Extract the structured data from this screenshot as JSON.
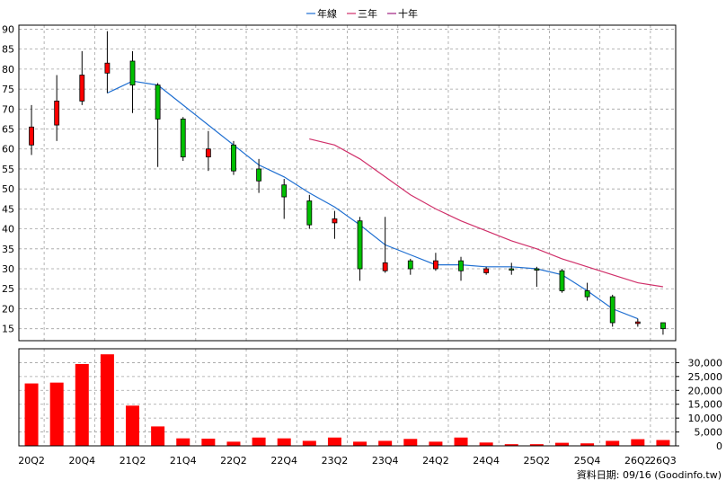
{
  "legend": [
    {
      "label": "年線",
      "color": "#1f6fd1"
    },
    {
      "label": "三年",
      "color": "#d0306a"
    },
    {
      "label": "十年",
      "color": "#a02080"
    }
  ],
  "footer": {
    "text": "資料日期: 09/16  (Goodinfo.tw)"
  },
  "chart_data": [
    {
      "type": "candlestick",
      "quarters": [
        "20Q2",
        "20Q3",
        "20Q4",
        "21Q1",
        "21Q2",
        "21Q3",
        "21Q4",
        "22Q1",
        "22Q2",
        "22Q3",
        "22Q4",
        "23Q1",
        "23Q2",
        "23Q3",
        "23Q4",
        "24Q1",
        "24Q2",
        "24Q3",
        "24Q4",
        "25Q1",
        "25Q2",
        "25Q3",
        "25Q4",
        "26Q1",
        "26Q2",
        "26Q3"
      ],
      "x_tick_labels": [
        "20Q2",
        "20Q4",
        "21Q2",
        "21Q4",
        "22Q2",
        "22Q4",
        "23Q2",
        "23Q4",
        "24Q2",
        "24Q4",
        "25Q2",
        "25Q4",
        "26Q2",
        "26Q3"
      ],
      "y_ticks": [
        15,
        20,
        25,
        30,
        35,
        40,
        45,
        50,
        55,
        60,
        65,
        70,
        75,
        80,
        85,
        90
      ],
      "ylim": [
        12,
        91
      ],
      "grid": true,
      "legend_position": "top",
      "up_color": "#ff0000",
      "down_color": "#00c000",
      "candles": [
        {
          "open": 61,
          "close": 65.5,
          "high": 71,
          "low": 58.5
        },
        {
          "open": 66,
          "close": 72,
          "high": 78.5,
          "low": 62
        },
        {
          "open": 72,
          "close": 78.5,
          "high": 84.5,
          "low": 71
        },
        {
          "open": 79,
          "close": 81.5,
          "high": 89.5,
          "low": 74
        },
        {
          "open": 82,
          "close": 76,
          "high": 84.5,
          "low": 69
        },
        {
          "open": 76,
          "close": 67.5,
          "high": 76.5,
          "low": 55.5
        },
        {
          "open": 67.5,
          "close": 58,
          "high": 68,
          "low": 57
        },
        {
          "open": 58,
          "close": 60,
          "high": 64.5,
          "low": 54.5
        },
        {
          "open": 61,
          "close": 54.5,
          "high": 62,
          "low": 53.5
        },
        {
          "open": 55,
          "close": 52,
          "high": 57.5,
          "low": 49
        },
        {
          "open": 51,
          "close": 48,
          "high": 52.5,
          "low": 42.5
        },
        {
          "open": 47,
          "close": 41,
          "high": 48.5,
          "low": 40
        },
        {
          "open": 41.5,
          "close": 42.5,
          "high": 44.5,
          "low": 37.5
        },
        {
          "open": 42,
          "close": 30,
          "high": 43,
          "low": 27
        },
        {
          "open": 29.5,
          "close": 31.5,
          "high": 43,
          "low": 29
        },
        {
          "open": 32,
          "close": 30,
          "high": 32.5,
          "low": 28.5
        },
        {
          "open": 30,
          "close": 32,
          "high": 34,
          "low": 29.5
        },
        {
          "open": 32,
          "close": 29.5,
          "high": 33,
          "low": 27
        },
        {
          "open": 29,
          "close": 30,
          "high": 30.5,
          "low": 28.5
        },
        {
          "open": 30,
          "close": 29.8,
          "high": 31.5,
          "low": 28.5
        },
        {
          "open": 30,
          "close": 29.8,
          "high": 30.5,
          "low": 25.5
        },
        {
          "open": 29.5,
          "close": 24.5,
          "high": 30,
          "low": 24
        },
        {
          "open": 24.5,
          "close": 23,
          "high": 26.5,
          "low": 22
        },
        {
          "open": 23,
          "close": 16.5,
          "high": 23.5,
          "low": 15.5
        },
        {
          "open": 16.3,
          "close": 16.7,
          "high": 17.5,
          "low": 15.5
        },
        {
          "open": 16.5,
          "close": 15,
          "high": 16.5,
          "low": 13.5
        }
      ],
      "lines": [
        {
          "legend_ref": 0,
          "color": "#1f6fd1",
          "start_index": 3,
          "values": [
            74,
            77,
            76,
            71,
            66,
            61,
            56,
            53,
            49,
            45.5,
            41,
            36,
            33.5,
            31,
            31,
            30.5,
            30.5,
            30,
            28.5,
            24.5,
            20,
            17.5
          ]
        },
        {
          "legend_ref": 1,
          "color": "#d0306a",
          "start_index": 11,
          "values": [
            62.5,
            61,
            57.5,
            53,
            48.5,
            45,
            42,
            39.5,
            37,
            35,
            32.5,
            30.5,
            28.5,
            26.5,
            25.5
          ]
        }
      ]
    },
    {
      "type": "bar",
      "categories": [
        "20Q2",
        "20Q3",
        "20Q4",
        "21Q1",
        "21Q2",
        "21Q3",
        "21Q4",
        "22Q1",
        "22Q2",
        "22Q3",
        "22Q4",
        "23Q1",
        "23Q2",
        "23Q3",
        "23Q4",
        "24Q1",
        "24Q2",
        "24Q3",
        "24Q4",
        "25Q1",
        "25Q2",
        "25Q3",
        "25Q4",
        "26Q1",
        "26Q2",
        "26Q3"
      ],
      "values": [
        22500,
        22800,
        29500,
        33000,
        14500,
        7000,
        2700,
        2600,
        1500,
        3000,
        2700,
        1800,
        3000,
        1500,
        1800,
        2500,
        1500,
        3000,
        1200,
        600,
        600,
        1100,
        900,
        1800,
        2400,
        2100
      ],
      "y_ticks": [
        0,
        5000,
        10000,
        15000,
        20000,
        25000,
        30000
      ],
      "y_tick_labels": [
        "0",
        "5,000",
        "10,000",
        "15,000",
        "20,000",
        "25,000",
        "30,000"
      ],
      "ylim": [
        0,
        35000
      ],
      "color": "#ff0000",
      "grid": true
    }
  ]
}
